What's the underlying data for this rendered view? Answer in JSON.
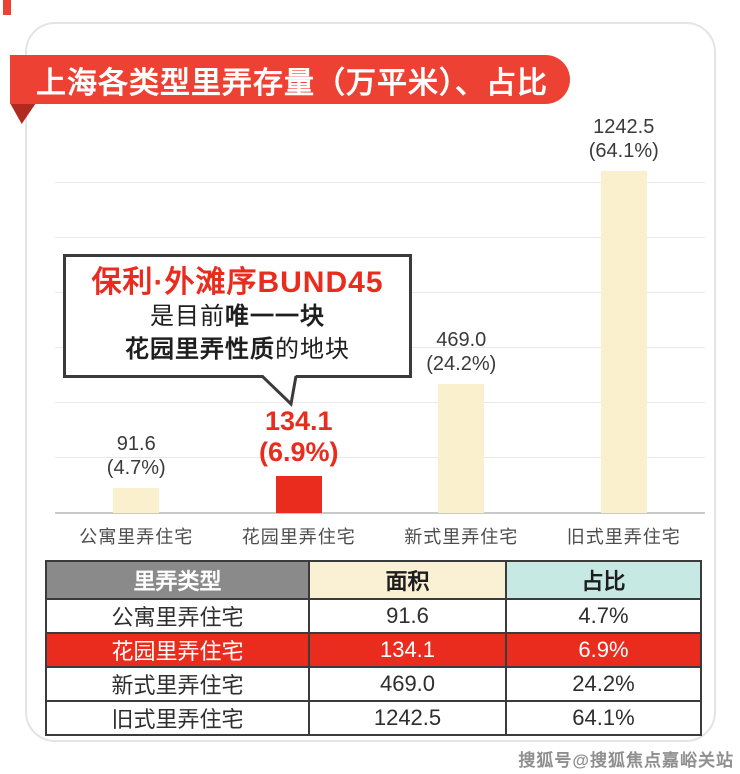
{
  "colors": {
    "banner_red": "#ed4134",
    "fold_red": "#b02a20",
    "highlight_red": "#ea2c1e",
    "bar_cream": "#faf0cd",
    "header_gray": "#8a8a8a",
    "header_cream": "#faf0d3",
    "header_cyan": "#c7e9e4",
    "grid_gray": "#e9e9e9"
  },
  "header": {
    "title": "上海各类型里弄存量（万平米）、占比"
  },
  "callout": {
    "title": "保利·外滩序BUND45",
    "line2_normal": "是目前",
    "line2_bold": "唯一一块",
    "line3_bold": "花园里弄性质",
    "line3_normal": "的地块"
  },
  "chart_data": {
    "type": "bar",
    "title": "上海各类型里弄存量（万平米）、占比",
    "categories": [
      "公寓里弄住宅",
      "花园里弄住宅",
      "新式里弄住宅",
      "旧式里弄住宅"
    ],
    "values": [
      91.6,
      134.1,
      469.0,
      1242.5
    ],
    "value_labels": [
      "91.6",
      "134.1",
      "469.0",
      "1242.5"
    ],
    "percent_labels": [
      "(4.7%)",
      "(6.9%)",
      "(24.2%)",
      "(64.1%)"
    ],
    "highlight_index": 1,
    "xlabel": "",
    "ylabel": "万平米",
    "ylim": [
      0,
      1200
    ],
    "grid_step": 200,
    "grid": true,
    "legend": "none",
    "bar_color_normal": "#faf0cd",
    "bar_color_highlight": "#ea2c1e"
  },
  "table": {
    "headers": [
      "里弄类型",
      "面积",
      "占比"
    ],
    "header_bgs": [
      "#8a8a8a",
      "#faf0d3",
      "#c7e9e4"
    ],
    "header_text_colors": [
      "#ffffff",
      "#1e1e1e",
      "#1e1e1e"
    ],
    "rows": [
      {
        "type": "公寓里弄住宅",
        "area": "91.6",
        "share": "4.7%",
        "highlight": false
      },
      {
        "type": "花园里弄住宅",
        "area": "134.1",
        "share": "6.9%",
        "highlight": true
      },
      {
        "type": "新式里弄住宅",
        "area": "469.0",
        "share": "24.2%",
        "highlight": false
      },
      {
        "type": "旧式里弄住宅",
        "area": "1242.5",
        "share": "64.1%",
        "highlight": false
      }
    ]
  },
  "watermark": {
    "text": "搜狐号@搜狐焦点嘉峪关站"
  }
}
